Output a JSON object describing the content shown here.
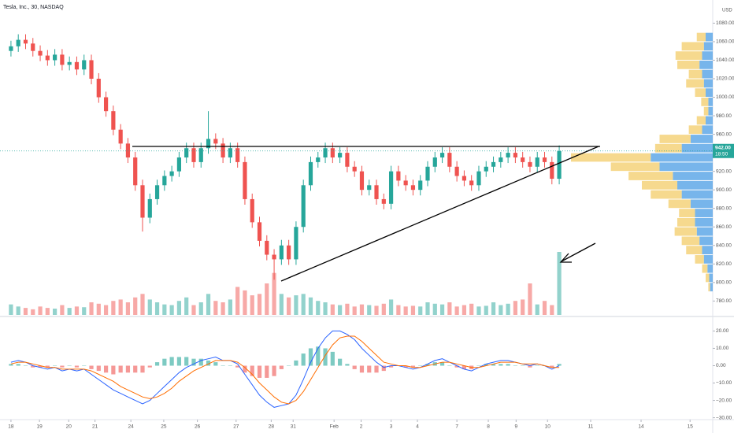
{
  "header": {
    "title": "Tesla, Inc., 30, NASDAQ",
    "currency": "USD"
  },
  "chart_data": [
    {
      "type": "candlestick",
      "xlim": [
        -1.5,
        96
      ],
      "xticks": [
        {
          "value": 0,
          "label": "18"
        },
        {
          "value": 3.9,
          "label": "19"
        },
        {
          "value": 7.9,
          "label": "20"
        },
        {
          "value": 11.5,
          "label": "21"
        },
        {
          "value": 16.4,
          "label": "24"
        },
        {
          "value": 20.9,
          "label": "25"
        },
        {
          "value": 25.5,
          "label": "26"
        },
        {
          "value": 30.8,
          "label": "27"
        },
        {
          "value": 35.6,
          "label": "28"
        },
        {
          "value": 38.6,
          "label": "31"
        },
        {
          "value": 44.2,
          "label": "Feb"
        },
        {
          "value": 47.9,
          "label": "2"
        },
        {
          "value": 52,
          "label": "3"
        },
        {
          "value": 55.6,
          "label": "4"
        },
        {
          "value": 61,
          "label": "7"
        },
        {
          "value": 65.3,
          "label": "8"
        },
        {
          "value": 69.1,
          "label": "9"
        },
        {
          "value": 73.4,
          "label": "10"
        },
        {
          "value": 79.3,
          "label": "11"
        },
        {
          "value": 86.2,
          "label": "14"
        },
        {
          "value": 92.9,
          "label": "15"
        }
      ],
      "ylim": [
        765,
        1105
      ],
      "yticks": [
        {
          "value": 780,
          "label": "780.00"
        },
        {
          "value": 800,
          "label": "800.00"
        },
        {
          "value": 820,
          "label": "820.00"
        },
        {
          "value": 840,
          "label": "840.00"
        },
        {
          "value": 860,
          "label": "860.00"
        },
        {
          "value": 880,
          "label": "880.00"
        },
        {
          "value": 900,
          "label": "900.00"
        },
        {
          "value": 920,
          "label": "920.00"
        },
        {
          "value": 940,
          "label": "940.00"
        },
        {
          "value": 960,
          "label": "960.00"
        },
        {
          "value": 980,
          "label": "980.00"
        },
        {
          "value": 1000,
          "label": "1000.00"
        },
        {
          "value": 1020,
          "label": "1020.00"
        },
        {
          "value": 1040,
          "label": "1040.00"
        },
        {
          "value": 1060,
          "label": "1060.00"
        },
        {
          "value": 1080,
          "label": "1080.00"
        }
      ],
      "open": [
        1050,
        1055,
        1062,
        1058,
        1050,
        1045,
        1040,
        1046,
        1035,
        1038,
        1030,
        1040,
        1020,
        1000,
        985,
        965,
        950,
        935,
        905,
        870,
        890,
        905,
        915,
        920,
        935,
        945,
        930,
        945,
        955,
        950,
        935,
        945,
        930,
        890,
        865,
        845,
        830,
        825,
        840,
        825,
        860,
        905,
        930,
        935,
        945,
        935,
        940,
        925,
        920,
        900,
        905,
        890,
        885,
        920,
        910,
        905,
        900,
        910,
        925,
        935,
        940,
        925,
        915,
        910,
        905,
        920,
        925,
        930,
        935,
        940,
        935,
        930,
        925,
        935,
        930,
        912
      ],
      "high": [
        1061,
        1068,
        1068,
        1064,
        1056,
        1051,
        1052,
        1052,
        1044,
        1044,
        1046,
        1046,
        1026,
        1006,
        991,
        971,
        956,
        941,
        911,
        896,
        911,
        921,
        926,
        941,
        951,
        951,
        951,
        985,
        961,
        956,
        951,
        951,
        936,
        896,
        871,
        851,
        836,
        846,
        846,
        866,
        911,
        936,
        941,
        951,
        951,
        946,
        946,
        931,
        926,
        911,
        911,
        896,
        926,
        926,
        916,
        911,
        916,
        931,
        941,
        946,
        946,
        931,
        921,
        916,
        926,
        931,
        936,
        941,
        946,
        946,
        941,
        936,
        941,
        941,
        936,
        948
      ],
      "low": [
        1044,
        1049,
        1052,
        1044,
        1039,
        1034,
        1034,
        1029,
        1029,
        1024,
        1024,
        1014,
        994,
        979,
        959,
        944,
        929,
        899,
        855,
        864,
        884,
        899,
        909,
        914,
        929,
        924,
        924,
        939,
        944,
        929,
        929,
        924,
        884,
        859,
        839,
        824,
        803,
        819,
        819,
        819,
        854,
        899,
        924,
        929,
        929,
        929,
        919,
        914,
        894,
        894,
        884,
        879,
        879,
        904,
        899,
        894,
        894,
        904,
        919,
        929,
        919,
        909,
        904,
        899,
        899,
        914,
        919,
        924,
        929,
        929,
        924,
        919,
        919,
        924,
        906,
        906
      ],
      "close": [
        1055,
        1062,
        1058,
        1050,
        1045,
        1040,
        1046,
        1035,
        1038,
        1030,
        1040,
        1020,
        1000,
        985,
        965,
        950,
        935,
        905,
        870,
        890,
        905,
        915,
        920,
        935,
        945,
        930,
        945,
        955,
        950,
        935,
        945,
        930,
        890,
        865,
        845,
        830,
        825,
        840,
        825,
        860,
        905,
        930,
        935,
        945,
        935,
        940,
        925,
        920,
        900,
        905,
        890,
        885,
        920,
        910,
        905,
        900,
        910,
        925,
        935,
        940,
        925,
        915,
        910,
        905,
        920,
        925,
        930,
        935,
        940,
        935,
        930,
        925,
        935,
        930,
        912,
        942
      ],
      "up_color": "#26a69a",
      "down_color": "#ef5350",
      "last_price": 942,
      "last_price_label": "942.00",
      "countdown": "18:50"
    },
    {
      "type": "bar",
      "values": [
        15,
        12,
        10,
        8,
        12,
        10,
        9,
        14,
        10,
        12,
        11,
        18,
        16,
        14,
        20,
        22,
        18,
        25,
        30,
        22,
        18,
        15,
        14,
        20,
        25,
        14,
        18,
        30,
        20,
        18,
        22,
        40,
        35,
        28,
        30,
        45,
        60,
        30,
        25,
        28,
        30,
        25,
        20,
        18,
        15,
        14,
        16,
        12,
        15,
        14,
        13,
        16,
        22,
        14,
        12,
        13,
        12,
        18,
        16,
        15,
        18,
        12,
        14,
        16,
        12,
        13,
        18,
        14,
        16,
        20,
        22,
        45,
        15,
        20,
        14,
        90
      ],
      "up_color": "#26a69a",
      "down_color": "#ef5350"
    },
    {
      "type": "volume_profile",
      "levels": [
        795,
        805,
        815,
        825,
        835,
        845,
        855,
        865,
        875,
        885,
        895,
        905,
        915,
        925,
        935,
        945,
        955,
        965,
        975,
        985,
        995,
        1005,
        1015,
        1025,
        1035,
        1045,
        1055,
        1065
      ],
      "up": [
        3,
        4,
        6,
        10,
        12,
        15,
        18,
        20,
        20,
        25,
        35,
        40,
        45,
        60,
        70,
        35,
        25,
        12,
        8,
        5,
        5,
        8,
        10,
        12,
        15,
        12,
        10,
        8
      ],
      "down": [
        2,
        4,
        6,
        10,
        18,
        20,
        25,
        20,
        18,
        25,
        35,
        40,
        50,
        55,
        90,
        30,
        35,
        15,
        10,
        5,
        8,
        12,
        20,
        15,
        25,
        30,
        25,
        10
      ],
      "up_color": "#5fa8e8",
      "down_color": "#f5d27a"
    },
    {
      "type": "macd",
      "ylim": [
        -32,
        27
      ],
      "yticks": [
        {
          "value": 20,
          "label": "20.00"
        },
        {
          "value": 10,
          "label": "10.00"
        },
        {
          "value": 0,
          "label": "0.00"
        },
        {
          "value": -10,
          "label": "−10.00"
        },
        {
          "value": -20,
          "label": "−20.00"
        },
        {
          "value": -30,
          "label": "−30.00"
        }
      ],
      "macd": [
        2,
        3,
        2,
        0,
        -1,
        -2,
        -1,
        -3,
        -2,
        -3,
        -2,
        -5,
        -8,
        -11,
        -14,
        -16,
        -18,
        -20,
        -22,
        -20,
        -16,
        -12,
        -8,
        -4,
        -1,
        1,
        3,
        4,
        5,
        3,
        3,
        1,
        -5,
        -11,
        -17,
        -21,
        -24,
        -23,
        -22,
        -17,
        -8,
        2,
        10,
        16,
        20,
        20,
        18,
        15,
        10,
        6,
        2,
        -1,
        0,
        0,
        -1,
        -2,
        -1,
        1,
        3,
        4,
        2,
        0,
        -2,
        -3,
        -1,
        1,
        2,
        3,
        3,
        2,
        1,
        0,
        1,
        0,
        -2,
        0
      ],
      "signal": [
        1,
        2,
        2,
        1,
        0,
        -1,
        -1,
        -2,
        -2,
        -2,
        -2,
        -3,
        -5,
        -7,
        -9,
        -12,
        -14,
        -16,
        -18,
        -19,
        -18,
        -16,
        -13,
        -9,
        -6,
        -3,
        -1,
        1,
        3,
        3,
        3,
        2,
        -1,
        -5,
        -10,
        -14,
        -18,
        -21,
        -22,
        -20,
        -15,
        -8,
        -1,
        6,
        12,
        16,
        17,
        17,
        14,
        10,
        6,
        2,
        1,
        0,
        0,
        -1,
        -1,
        0,
        1,
        2,
        2,
        1,
        0,
        -1,
        -1,
        0,
        1,
        2,
        2,
        2,
        1,
        1,
        1,
        0,
        -1,
        -1
      ],
      "histogram": [
        1,
        1,
        0,
        -1,
        -1,
        -1,
        0,
        -1,
        0,
        -1,
        0,
        -2,
        -3,
        -4,
        -5,
        -4,
        -4,
        -4,
        -4,
        -1,
        2,
        4,
        5,
        5,
        5,
        4,
        4,
        3,
        2,
        0,
        0,
        -1,
        -4,
        -6,
        -7,
        -7,
        -6,
        -2,
        0,
        3,
        7,
        10,
        11,
        10,
        8,
        4,
        1,
        -2,
        -4,
        -4,
        -4,
        -3,
        -1,
        0,
        -1,
        -1,
        0,
        1,
        2,
        2,
        0,
        -1,
        -2,
        -2,
        0,
        1,
        1,
        1,
        1,
        0,
        0,
        -1,
        0,
        0,
        -1,
        1
      ],
      "macd_color": "#2962ff",
      "signal_color": "#ff6d00"
    }
  ]
}
